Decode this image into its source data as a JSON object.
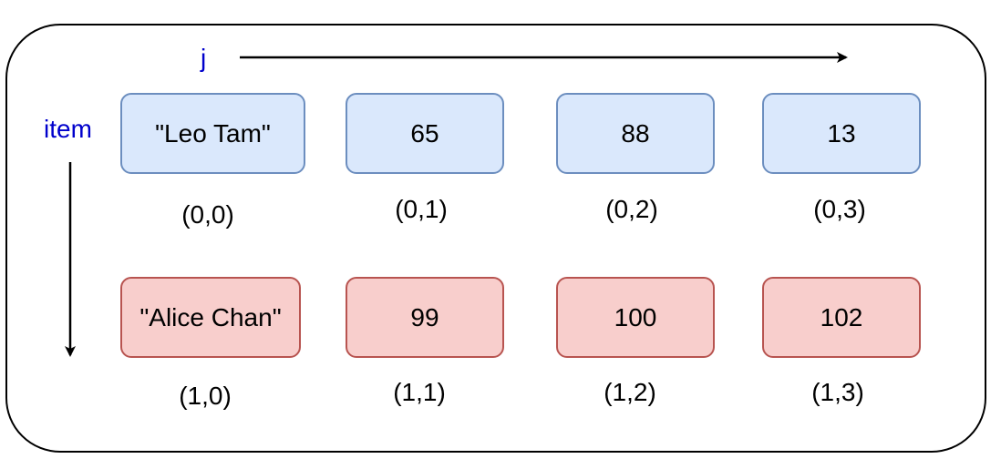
{
  "diagram": {
    "axis_labels": {
      "col": "j",
      "row": "item"
    },
    "colors": {
      "row0_fill": "#dae8fc",
      "row0_stroke": "#6c8ebf",
      "row1_fill": "#f8cecc",
      "row1_stroke": "#b85450",
      "axis_label": "#0000cc"
    },
    "rows": [
      {
        "cells": [
          {
            "value": "\"Leo Tam\"",
            "coord": "(0,0)"
          },
          {
            "value": "65",
            "coord": "(0,1)"
          },
          {
            "value": "88",
            "coord": "(0,2)"
          },
          {
            "value": "13",
            "coord": "(0,3)"
          }
        ]
      },
      {
        "cells": [
          {
            "value": "\"Alice Chan\"",
            "coord": "(1,0)"
          },
          {
            "value": "99",
            "coord": "(1,1)"
          },
          {
            "value": "100",
            "coord": "(1,2)"
          },
          {
            "value": "102",
            "coord": "(1,3)"
          }
        ]
      }
    ]
  }
}
